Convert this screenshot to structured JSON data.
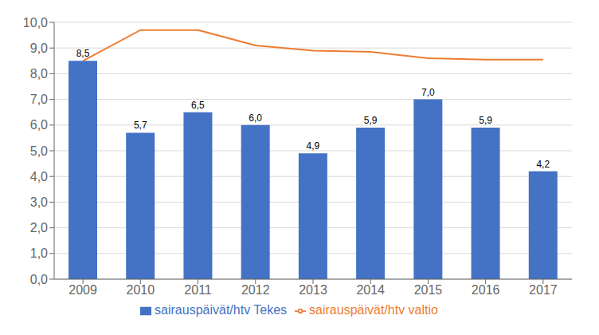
{
  "chart_data": {
    "type": "bar",
    "categories": [
      "2009",
      "2010",
      "2011",
      "2012",
      "2013",
      "2014",
      "2015",
      "2016",
      "2017"
    ],
    "series": [
      {
        "name": "sairauspäivät/htv Tekes",
        "type": "bar",
        "color": "#4472C4",
        "values": [
          8.5,
          5.7,
          6.5,
          6.0,
          4.9,
          5.9,
          7.0,
          5.9,
          4.2
        ],
        "value_labels": [
          "8,5",
          "5,7",
          "6,5",
          "6,0",
          "4,9",
          "5,9",
          "7,0",
          "5,9",
          "4,2"
        ],
        "data_labels": true
      },
      {
        "name": "sairauspäivät/htv valtio",
        "type": "line",
        "color": "#ED7D31",
        "values": [
          8.5,
          9.7,
          9.7,
          9.1,
          8.9,
          8.85,
          8.6,
          8.55,
          8.55
        ]
      }
    ],
    "ylim": [
      0,
      10.0
    ],
    "yticks": [
      {
        "value": 0.0,
        "label": "0,0"
      },
      {
        "value": 1.0,
        "label": "1,0"
      },
      {
        "value": 2.0,
        "label": "2,0"
      },
      {
        "value": 3.0,
        "label": "3,0"
      },
      {
        "value": 4.0,
        "label": "4,0"
      },
      {
        "value": 5.0,
        "label": "5,0"
      },
      {
        "value": 6.0,
        "label": "6,0"
      },
      {
        "value": 7.0,
        "label": "7,0"
      },
      {
        "value": 8.0,
        "label": "8,0"
      },
      {
        "value": 9.0,
        "label": "9,0"
      },
      {
        "value": 10.0,
        "label": "10,0"
      }
    ],
    "grid": true,
    "legend": "bottom"
  }
}
